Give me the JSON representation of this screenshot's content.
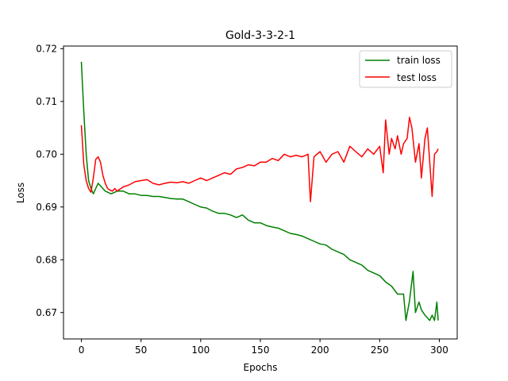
{
  "chart_data": {
    "type": "line",
    "title": "Gold-3-3-2-1",
    "xlabel": "Epochs",
    "ylabel": "Loss",
    "xlim": [
      -15,
      315
    ],
    "ylim": [
      0.665,
      0.7205
    ],
    "xticks": [
      0,
      50,
      100,
      150,
      200,
      250,
      300
    ],
    "yticks": [
      0.67,
      0.68,
      0.69,
      0.7,
      0.71,
      0.72
    ],
    "ytick_labels": [
      "0.67",
      "0.68",
      "0.69",
      "0.70",
      "0.71",
      "0.72"
    ],
    "legend": "top-right",
    "grid": false,
    "series": [
      {
        "name": "train loss",
        "color": "#008000",
        "x": [
          0,
          2,
          4,
          6,
          8,
          10,
          12,
          14,
          16,
          18,
          20,
          25,
          30,
          35,
          40,
          45,
          50,
          55,
          60,
          65,
          70,
          75,
          80,
          85,
          90,
          95,
          100,
          105,
          110,
          115,
          120,
          125,
          130,
          135,
          140,
          145,
          150,
          155,
          160,
          165,
          170,
          175,
          180,
          185,
          190,
          195,
          200,
          205,
          210,
          215,
          220,
          225,
          230,
          235,
          240,
          245,
          250,
          255,
          260,
          265,
          270,
          272,
          275,
          278,
          280,
          283,
          285,
          288,
          290,
          292,
          294,
          296,
          298,
          299
        ],
        "y": [
          0.7175,
          0.708,
          0.7,
          0.695,
          0.6935,
          0.6925,
          0.6935,
          0.6945,
          0.694,
          0.6935,
          0.693,
          0.6925,
          0.693,
          0.693,
          0.6925,
          0.6925,
          0.6922,
          0.6922,
          0.692,
          0.692,
          0.6918,
          0.6916,
          0.6915,
          0.6915,
          0.691,
          0.6905,
          0.69,
          0.6898,
          0.6892,
          0.6888,
          0.6888,
          0.6885,
          0.688,
          0.6885,
          0.6875,
          0.687,
          0.687,
          0.6865,
          0.6862,
          0.686,
          0.6855,
          0.685,
          0.6848,
          0.6845,
          0.684,
          0.6835,
          0.683,
          0.6828,
          0.682,
          0.6815,
          0.681,
          0.68,
          0.6795,
          0.679,
          0.678,
          0.6775,
          0.677,
          0.6758,
          0.675,
          0.6735,
          0.6735,
          0.6685,
          0.6722,
          0.6778,
          0.67,
          0.672,
          0.6705,
          0.6695,
          0.669,
          0.6685,
          0.6695,
          0.6685,
          0.672,
          0.6685
        ]
      },
      {
        "name": "test loss",
        "color": "#ff0000",
        "x": [
          0,
          2,
          4,
          6,
          8,
          10,
          12,
          14,
          16,
          18,
          20,
          22,
          24,
          26,
          28,
          30,
          35,
          40,
          45,
          50,
          55,
          60,
          65,
          70,
          75,
          80,
          85,
          90,
          95,
          100,
          105,
          110,
          115,
          120,
          125,
          130,
          135,
          140,
          145,
          150,
          155,
          160,
          165,
          170,
          175,
          180,
          185,
          190,
          192,
          195,
          200,
          205,
          210,
          215,
          220,
          225,
          230,
          235,
          240,
          245,
          250,
          253,
          255,
          258,
          260,
          263,
          265,
          268,
          270,
          273,
          275,
          277,
          280,
          283,
          285,
          288,
          290,
          292,
          294,
          296,
          298,
          299
        ],
        "y": [
          0.7055,
          0.698,
          0.695,
          0.6935,
          0.6928,
          0.6955,
          0.699,
          0.6995,
          0.6985,
          0.696,
          0.6945,
          0.6935,
          0.6932,
          0.693,
          0.6935,
          0.693,
          0.6938,
          0.6942,
          0.6948,
          0.695,
          0.6952,
          0.6945,
          0.6942,
          0.6945,
          0.6947,
          0.6946,
          0.6948,
          0.6945,
          0.695,
          0.6955,
          0.695,
          0.6955,
          0.696,
          0.6965,
          0.6962,
          0.6972,
          0.6975,
          0.698,
          0.6978,
          0.6985,
          0.6985,
          0.6992,
          0.6988,
          0.7,
          0.6995,
          0.6998,
          0.6995,
          0.7,
          0.691,
          0.6995,
          0.7005,
          0.6985,
          0.7,
          0.7005,
          0.6985,
          0.7015,
          0.7005,
          0.6995,
          0.701,
          0.7,
          0.7015,
          0.6965,
          0.7065,
          0.7,
          0.703,
          0.701,
          0.7035,
          0.7,
          0.702,
          0.703,
          0.707,
          0.705,
          0.6985,
          0.702,
          0.6955,
          0.703,
          0.705,
          0.6985,
          0.692,
          0.7,
          0.7005,
          0.701
        ]
      }
    ]
  }
}
